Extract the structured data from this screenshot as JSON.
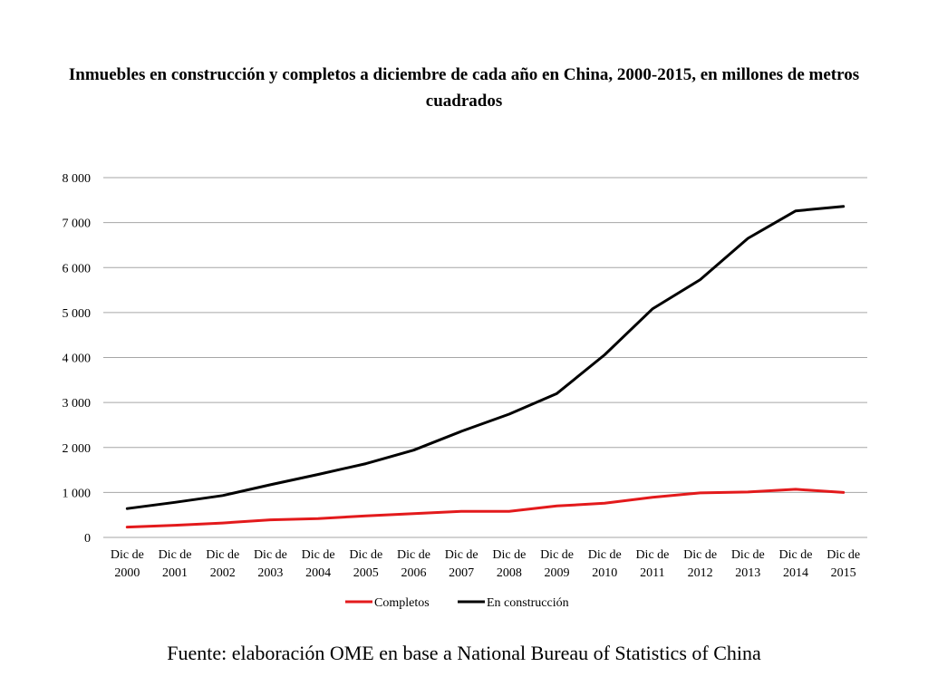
{
  "chart_data": {
    "type": "line",
    "title": "Inmuebles en construcción y completos a diciembre de cada año en China, 2000-2015, en millones de metros cuadrados",
    "categories": [
      [
        "Dic de",
        "2000"
      ],
      [
        "Dic de",
        "2001"
      ],
      [
        "Dic de",
        "2002"
      ],
      [
        "Dic de",
        "2003"
      ],
      [
        "Dic de",
        "2004"
      ],
      [
        "Dic de",
        "2005"
      ],
      [
        "Dic de",
        "2006"
      ],
      [
        "Dic de",
        "2007"
      ],
      [
        "Dic de",
        "2008"
      ],
      [
        "Dic de",
        "2009"
      ],
      [
        "Dic de",
        "2010"
      ],
      [
        "Dic de",
        "2011"
      ],
      [
        "Dic de",
        "2012"
      ],
      [
        "Dic de",
        "2013"
      ],
      [
        "Dic de",
        "2014"
      ],
      [
        "Dic de",
        "2015"
      ]
    ],
    "yticks": [
      "0",
      "1 000",
      "2 000",
      "3 000",
      "4 000",
      "5 000",
      "6 000",
      "7 000",
      "8 000"
    ],
    "ylim": [
      0,
      8000
    ],
    "grid": true,
    "legend_position": "bottom",
    "series": [
      {
        "name": "Completos",
        "color": "#e31a1c",
        "values": [
          230,
          270,
          320,
          390,
          420,
          480,
          530,
          580,
          580,
          700,
          760,
          890,
          990,
          1010,
          1070,
          1000
        ]
      },
      {
        "name": "En construcción",
        "color": "#000000",
        "values": [
          640,
          780,
          930,
          1170,
          1400,
          1640,
          1940,
          2360,
          2740,
          3200,
          4060,
          5080,
          5730,
          6650,
          7260,
          7360
        ]
      }
    ]
  },
  "source": "Fuente:  elaboración OME en base a National Bureau of Statistics of China"
}
